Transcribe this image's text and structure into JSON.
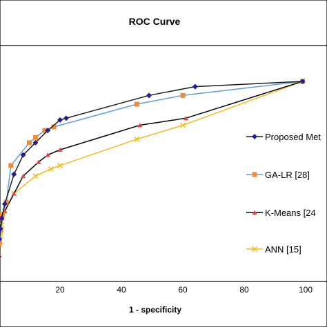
{
  "chart_data": {
    "type": "line",
    "title": "ROC Curve",
    "xlabel": "1 - specificity",
    "ylabel": "",
    "xlim": [
      0,
      100
    ],
    "ylim": [
      0,
      100
    ],
    "x_ticks": [
      "20",
      "40",
      "60",
      "80",
      "100"
    ],
    "grid": false,
    "legend_position": "right",
    "series": [
      {
        "name": "Proposed Met",
        "color": "#1f1f8f",
        "line_color": "#1a1a1a",
        "marker": "diamond",
        "points": [
          [
            0,
            0
          ],
          [
            0.3,
            10
          ],
          [
            0.6,
            16
          ],
          [
            1,
            22
          ],
          [
            2,
            30
          ],
          [
            5,
            47
          ],
          [
            8,
            58
          ],
          [
            12,
            65
          ],
          [
            16,
            72
          ],
          [
            20,
            78
          ],
          [
            22,
            79
          ],
          [
            49,
            92
          ],
          [
            64,
            97
          ],
          [
            99,
            100
          ]
        ]
      },
      {
        "name": "GA-LR [28]",
        "color": "#f08a3a",
        "line_color": "#5aa0d8",
        "marker": "square",
        "points": [
          [
            0,
            0
          ],
          [
            0.3,
            8
          ],
          [
            0.7,
            15
          ],
          [
            1.2,
            24
          ],
          [
            2.5,
            31
          ],
          [
            4,
            52
          ],
          [
            10,
            65
          ],
          [
            12,
            68
          ],
          [
            15,
            72
          ],
          [
            18,
            74
          ],
          [
            45,
            87
          ],
          [
            60,
            92
          ],
          [
            99,
            100
          ]
        ]
      },
      {
        "name": "K-Means [24",
        "color": "#e04848",
        "line_color": "#000000",
        "marker": "triangle",
        "points": [
          [
            0,
            0
          ],
          [
            0.3,
            9
          ],
          [
            0.7,
            16
          ],
          [
            1.2,
            22
          ],
          [
            2,
            26
          ],
          [
            5,
            36
          ],
          [
            8,
            46
          ],
          [
            13,
            54
          ],
          [
            16,
            58
          ],
          [
            20,
            61
          ],
          [
            46,
            75
          ],
          [
            61,
            79
          ],
          [
            99,
            100
          ]
        ]
      },
      {
        "name": "ANN [15]",
        "color": "#f5bc1a",
        "line_color": "#f5bc1a",
        "marker": "x",
        "points": [
          [
            0,
            0
          ],
          [
            0.3,
            7
          ],
          [
            0.7,
            12
          ],
          [
            1,
            18
          ],
          [
            2,
            26
          ],
          [
            5,
            36
          ],
          [
            12,
            46
          ],
          [
            17,
            50
          ],
          [
            20,
            52
          ],
          [
            45,
            67
          ],
          [
            60,
            75
          ],
          [
            99,
            100
          ]
        ]
      }
    ]
  }
}
